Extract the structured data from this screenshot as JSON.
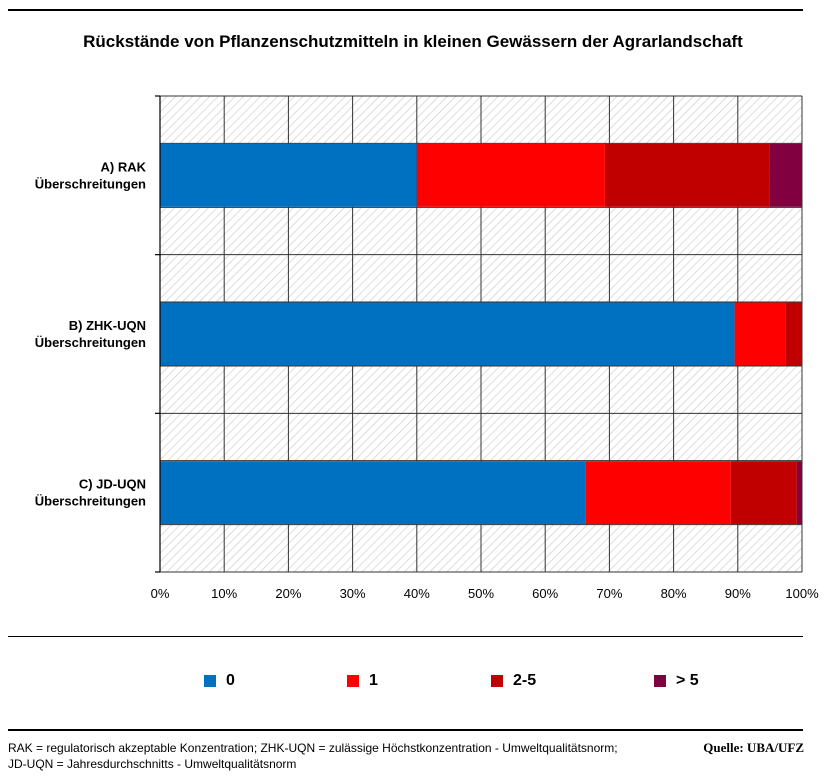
{
  "chart_data": {
    "type": "bar",
    "orientation": "horizontal",
    "stacked": "percent",
    "title": "Rückstände von Pflanzenschutzmitteln in kleinen Gewässern der Agrarlandschaft",
    "categories": [
      {
        "line1": "A) RAK",
        "line2": "Überschreitungen"
      },
      {
        "line1": "B) ZHK-UQN",
        "line2": "Überschreitungen"
      },
      {
        "line1": "C) JD-UQN",
        "line2": "Überschreitungen"
      }
    ],
    "series": [
      {
        "name": "0",
        "color": "#0070C0",
        "values": [
          40,
          89.5,
          66.3
        ]
      },
      {
        "name": "1",
        "color": "#FF0000",
        "values": [
          29.3,
          8,
          22.6
        ]
      },
      {
        "name": "2-5",
        "color": "#C00000",
        "values": [
          25.7,
          2.5,
          10.3
        ]
      },
      {
        "name": "> 5",
        "color": "#800040",
        "values": [
          5,
          0,
          0.8
        ]
      }
    ],
    "x_ticks": [
      "0%",
      "10%",
      "20%",
      "30%",
      "40%",
      "50%",
      "60%",
      "70%",
      "80%",
      "90%",
      "100%"
    ],
    "xlim": [
      0,
      100
    ],
    "grid": true,
    "legend_position": "bottom"
  },
  "footnote": {
    "line1": "RAK = regulatorisch akzeptable Konzentration; ZHK-UQN = zulässige Höchstkonzentration - Umweltqualitätsnorm;",
    "line2": "JD-UQN = Jahresdurchschnitts - Umweltqualitätsnorm"
  },
  "source": "Quelle: UBA/UFZ"
}
